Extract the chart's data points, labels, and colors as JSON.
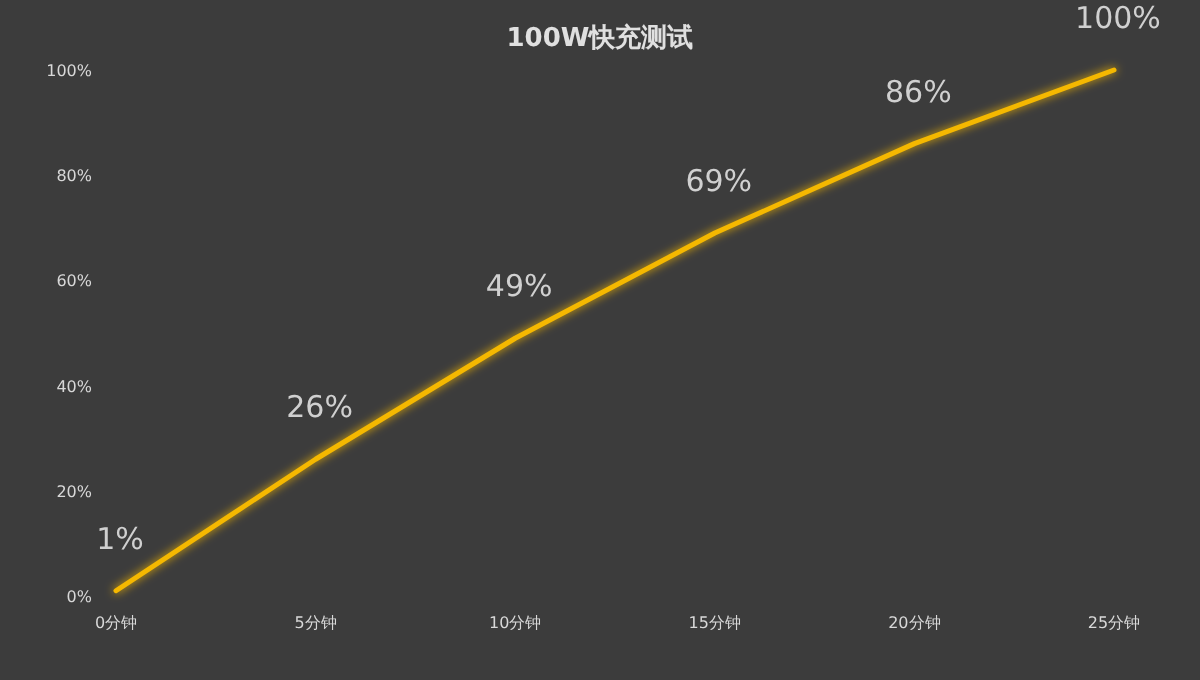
{
  "chart_data": {
    "type": "line",
    "title": "100W快充测试",
    "categories": [
      "0分钟",
      "5分钟",
      "10分钟",
      "15分钟",
      "20分钟",
      "25分钟"
    ],
    "series": [
      {
        "color": "#f5b800",
        "values": [
          1,
          26,
          49,
          69,
          86,
          100
        ],
        "value_labels": [
          "1%",
          "26%",
          "49%",
          "69%",
          "86%",
          "100%"
        ]
      }
    ],
    "ylim": [
      0,
      100
    ],
    "yticks": [
      {
        "value": 0,
        "label": "0%"
      },
      {
        "value": 20,
        "label": "20%"
      },
      {
        "value": 40,
        "label": "40%"
      },
      {
        "value": 60,
        "label": "60%"
      },
      {
        "value": 80,
        "label": "80%"
      },
      {
        "value": 100,
        "label": "100%"
      }
    ],
    "grid": false,
    "marker": "none",
    "line_style": "solid"
  }
}
